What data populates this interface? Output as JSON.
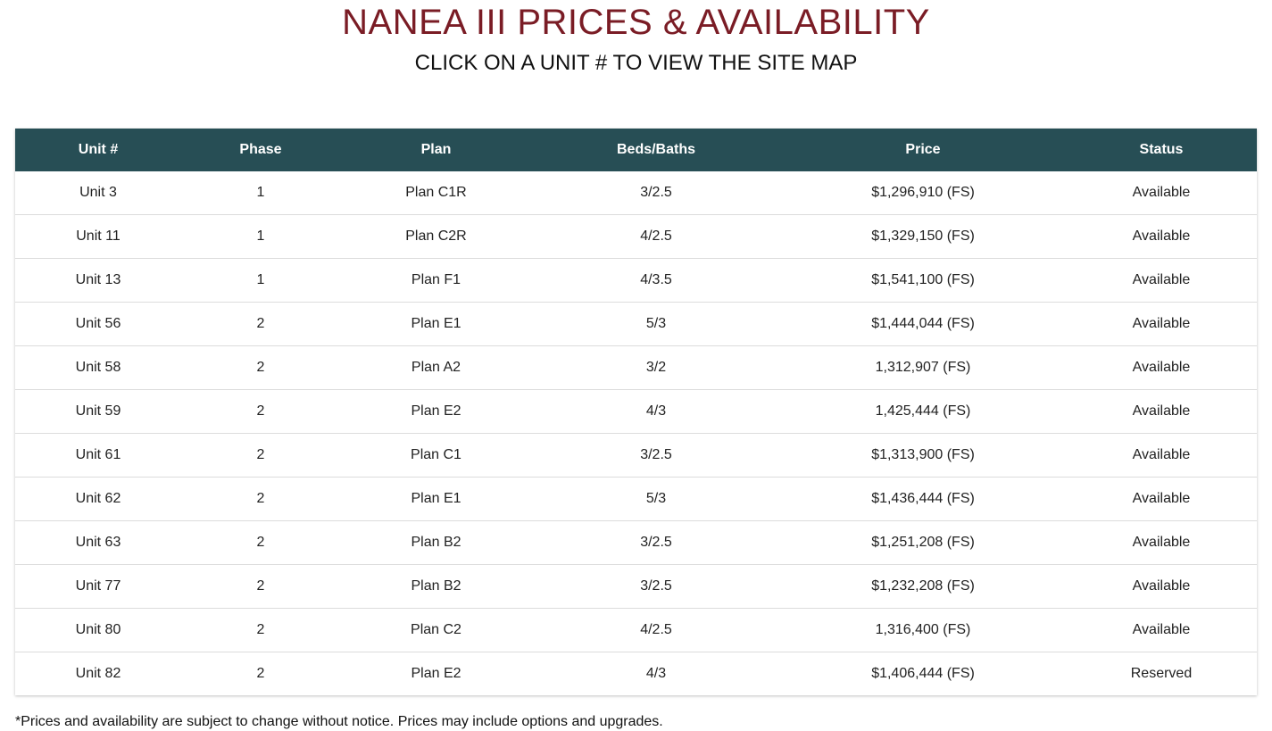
{
  "header": {
    "title": "NANEA III PRICES & AVAILABILITY",
    "subtitle": "CLICK ON A UNIT # TO VIEW THE SITE MAP"
  },
  "table": {
    "columns": [
      "Unit #",
      "Phase",
      "Plan",
      "Beds/Baths",
      "Price",
      "Status"
    ],
    "rows": [
      {
        "unit": "Unit 3",
        "phase": "1",
        "plan": "Plan C1R",
        "beds_baths": "3/2.5",
        "price": "$1,296,910 (FS)",
        "status": "Available"
      },
      {
        "unit": "Unit 11",
        "phase": "1",
        "plan": "Plan C2R",
        "beds_baths": "4/2.5",
        "price": "$1,329,150 (FS)",
        "status": "Available"
      },
      {
        "unit": "Unit 13",
        "phase": "1",
        "plan": "Plan F1",
        "beds_baths": "4/3.5",
        "price": "$1,541,100 (FS)",
        "status": "Available"
      },
      {
        "unit": "Unit 56",
        "phase": "2",
        "plan": "Plan E1",
        "beds_baths": "5/3",
        "price": "$1,444,044 (FS)",
        "status": "Available"
      },
      {
        "unit": "Unit 58",
        "phase": "2",
        "plan": "Plan A2",
        "beds_baths": "3/2",
        "price": "1,312,907 (FS)",
        "status": "Available"
      },
      {
        "unit": "Unit 59",
        "phase": "2",
        "plan": "Plan E2",
        "beds_baths": "4/3",
        "price": "1,425,444 (FS)",
        "status": "Available"
      },
      {
        "unit": "Unit 61",
        "phase": "2",
        "plan": "Plan C1",
        "beds_baths": "3/2.5",
        "price": "$1,313,900 (FS)",
        "status": "Available"
      },
      {
        "unit": "Unit 62",
        "phase": "2",
        "plan": "Plan E1",
        "beds_baths": "5/3",
        "price": "$1,436,444 (FS)",
        "status": "Available"
      },
      {
        "unit": "Unit 63",
        "phase": "2",
        "plan": "Plan B2",
        "beds_baths": "3/2.5",
        "price": "$1,251,208 (FS)",
        "status": "Available"
      },
      {
        "unit": "Unit 77",
        "phase": "2",
        "plan": "Plan B2",
        "beds_baths": "3/2.5",
        "price": "$1,232,208 (FS)",
        "status": "Available"
      },
      {
        "unit": "Unit 80",
        "phase": "2",
        "plan": "Plan C2",
        "beds_baths": "4/2.5",
        "price": "1,316,400 (FS)",
        "status": "Available"
      },
      {
        "unit": "Unit 82",
        "phase": "2",
        "plan": "Plan E2",
        "beds_baths": "4/3",
        "price": "$1,406,444 (FS)",
        "status": "Reserved"
      }
    ]
  },
  "footnote": "*Prices and availability are subject to change without notice. Prices may include options and upgrades.",
  "colors": {
    "title": "#7a1c25",
    "header_bg": "#274e55",
    "header_text": "#ffffff"
  }
}
